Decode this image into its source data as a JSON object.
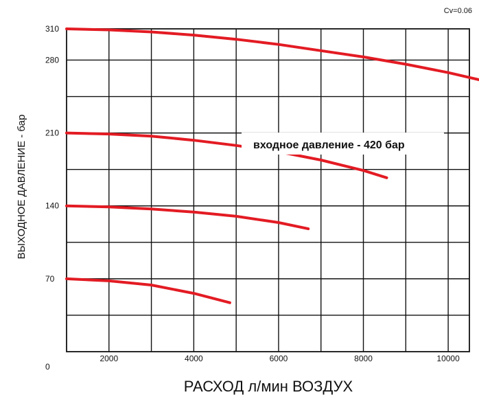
{
  "chart_data": {
    "type": "line",
    "title": "",
    "xlabel": "РАСХОД л/мин ВОЗДУХ",
    "ylabel": "ВЫХОДНОЕ ДАВЛЕНИЕ - бар",
    "annotation": "входное давление - 420 бар",
    "cv_label": "Cv=0.06",
    "xlim": [
      1000,
      10500
    ],
    "ylim": [
      0,
      310
    ],
    "x_ticks": [
      2000,
      4000,
      6000,
      8000,
      10000
    ],
    "y_ticks": [
      0,
      70,
      140,
      210,
      280,
      310
    ],
    "grid": true,
    "series": [
      {
        "points": [
          [
            1000,
            310
          ],
          [
            2000,
            309
          ],
          [
            3000,
            307
          ],
          [
            4000,
            304
          ],
          [
            5000,
            300
          ],
          [
            6000,
            295
          ],
          [
            7000,
            289
          ],
          [
            8000,
            283
          ],
          [
            9000,
            276
          ],
          [
            10000,
            268
          ],
          [
            10850,
            260
          ]
        ],
        "color": "#e31b23"
      },
      {
        "points": [
          [
            1000,
            210
          ],
          [
            2000,
            209
          ],
          [
            3000,
            207
          ],
          [
            4000,
            203
          ],
          [
            5000,
            198
          ],
          [
            6000,
            192
          ],
          [
            7000,
            184
          ],
          [
            8000,
            174
          ],
          [
            8550,
            167
          ]
        ],
        "color": "#e31b23"
      },
      {
        "points": [
          [
            1000,
            140
          ],
          [
            2000,
            139
          ],
          [
            3000,
            137
          ],
          [
            4000,
            134
          ],
          [
            5000,
            130
          ],
          [
            6000,
            124
          ],
          [
            6700,
            118
          ]
        ],
        "color": "#e31b23"
      },
      {
        "points": [
          [
            1000,
            70
          ],
          [
            2000,
            68
          ],
          [
            3000,
            64
          ],
          [
            4000,
            56
          ],
          [
            4850,
            47
          ]
        ],
        "color": "#e31b23"
      }
    ]
  }
}
